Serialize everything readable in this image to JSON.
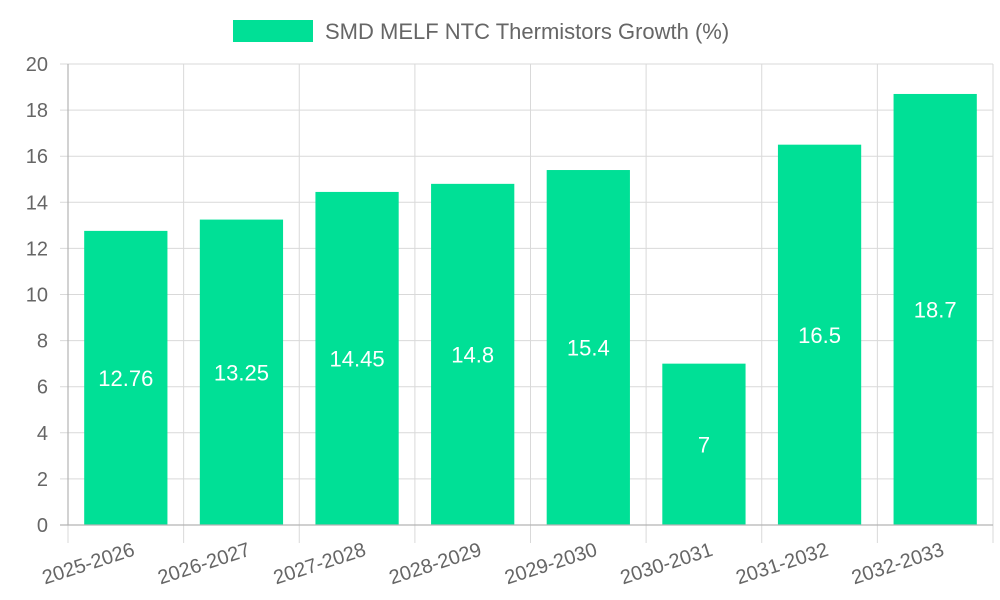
{
  "chart_data": {
    "type": "bar",
    "title": "",
    "xlabel": "",
    "ylabel": "",
    "categories": [
      "2025-2026",
      "2026-2027",
      "2027-2028",
      "2028-2029",
      "2029-2030",
      "2030-2031",
      "2031-2032",
      "2032-2033"
    ],
    "series": [
      {
        "name": "SMD MELF NTC Thermistors Growth (%)",
        "values": [
          12.76,
          13.25,
          14.45,
          14.8,
          15.4,
          7,
          16.5,
          18.7
        ],
        "labels": [
          "12.76",
          "13.25",
          "14.45",
          "14.8",
          "15.4",
          "7",
          "16.5",
          "18.7"
        ],
        "color": "#00e096"
      }
    ],
    "ylim": [
      0,
      20
    ],
    "yticks": [
      "0",
      "2",
      "4",
      "6",
      "8",
      "10",
      "12",
      "14",
      "16",
      "18",
      "20"
    ],
    "grid": true,
    "legend_position": "top-center"
  }
}
